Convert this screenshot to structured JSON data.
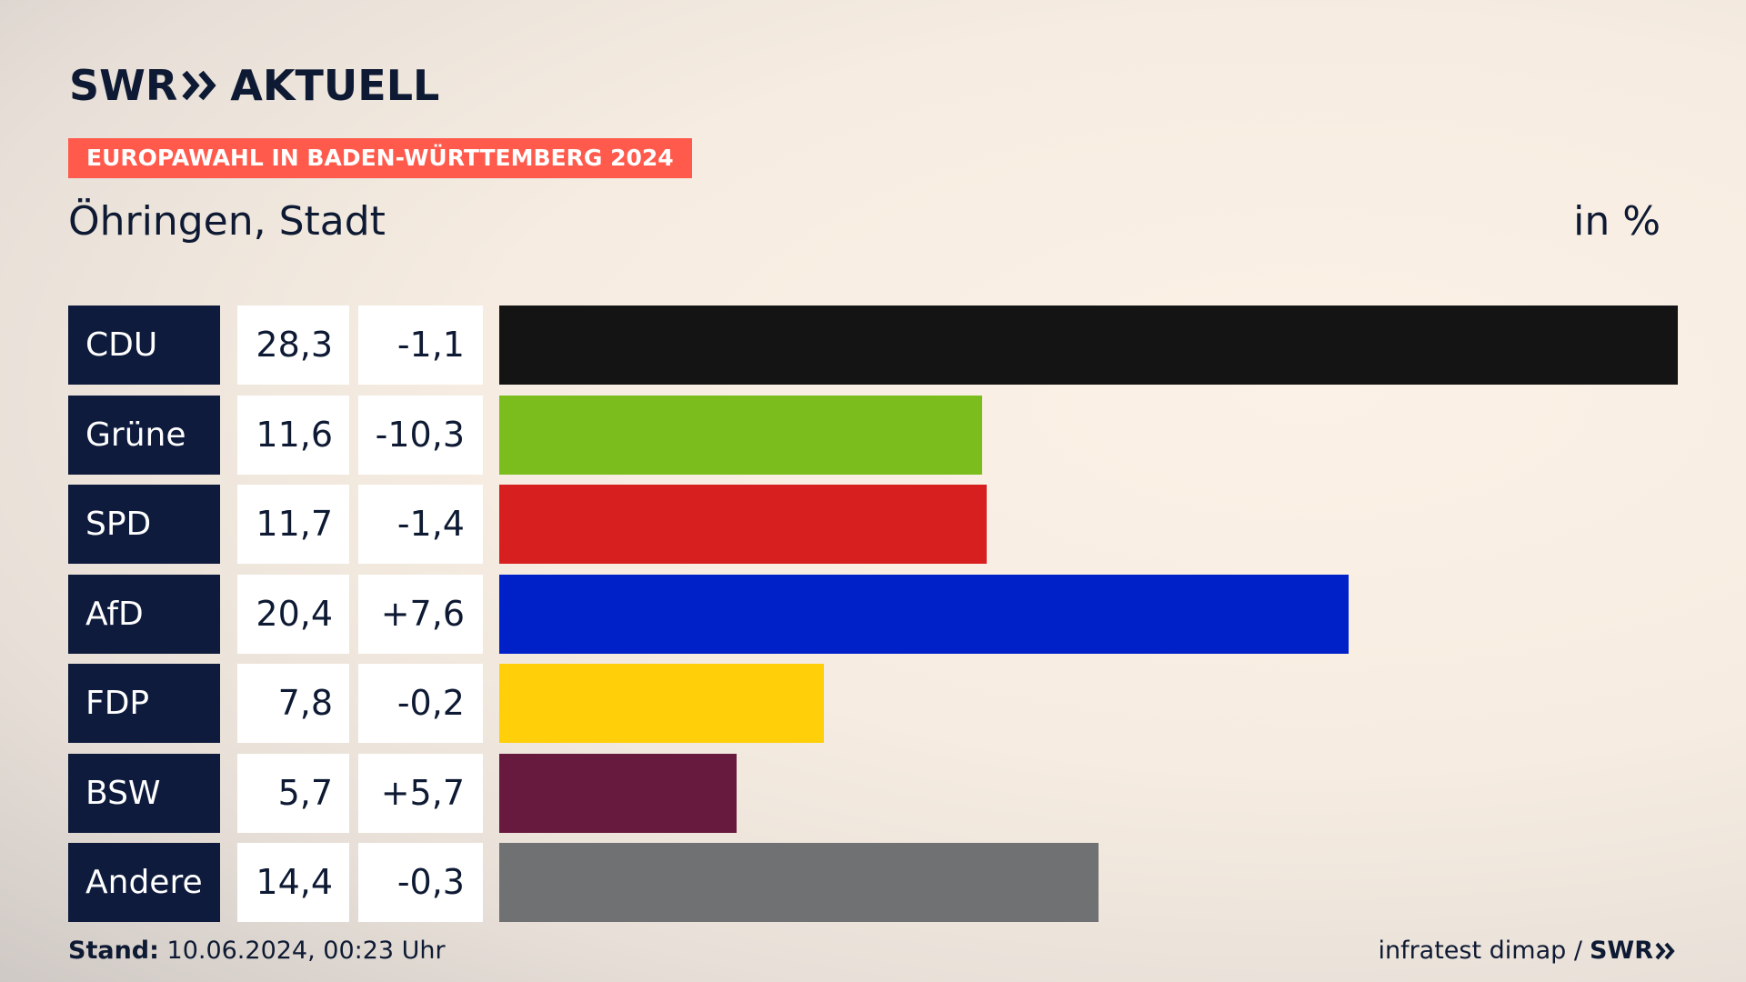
{
  "header": {
    "brand_prefix": "SWR",
    "brand_suffix": "AKTUELL",
    "tagline": "EUROPAWAHL IN BADEN-WÜRTTEMBERG 2024",
    "place": "Öhringen, Stadt",
    "unit": "in %"
  },
  "footer": {
    "stand_label": "Stand:",
    "stand_value": "10.06.2024, 00:23 Uhr",
    "source_text": "infratest dimap /",
    "source_brand": "SWR"
  },
  "colors": {
    "navy": "#0e1b3d",
    "tagline_red": "#ff5a4b"
  },
  "chart_data": {
    "type": "bar",
    "orientation": "horizontal",
    "categories": [
      "CDU",
      "Grüne",
      "SPD",
      "AfD",
      "FDP",
      "BSW",
      "Andere"
    ],
    "values": [
      28.3,
      11.6,
      11.7,
      20.4,
      7.8,
      5.7,
      14.4
    ],
    "value_labels": [
      "28,3",
      "11,6",
      "11,7",
      "20,4",
      "7,8",
      "5,7",
      "14,4"
    ],
    "change_labels": [
      "-1,1",
      "-10,3",
      "-1,4",
      "+7,6",
      "-0,2",
      "+5,7",
      "-0,3"
    ],
    "changes": [
      -1.1,
      -10.3,
      -1.4,
      7.6,
      -0.2,
      5.7,
      -0.3
    ],
    "colors": [
      "#141414",
      "#7bbd1c",
      "#d71f1f",
      "#0021c8",
      "#ffcf0a",
      "#671a3e",
      "#707172"
    ],
    "title": "",
    "xlabel": "",
    "ylabel": "",
    "xlim": [
      0,
      28.3
    ]
  }
}
